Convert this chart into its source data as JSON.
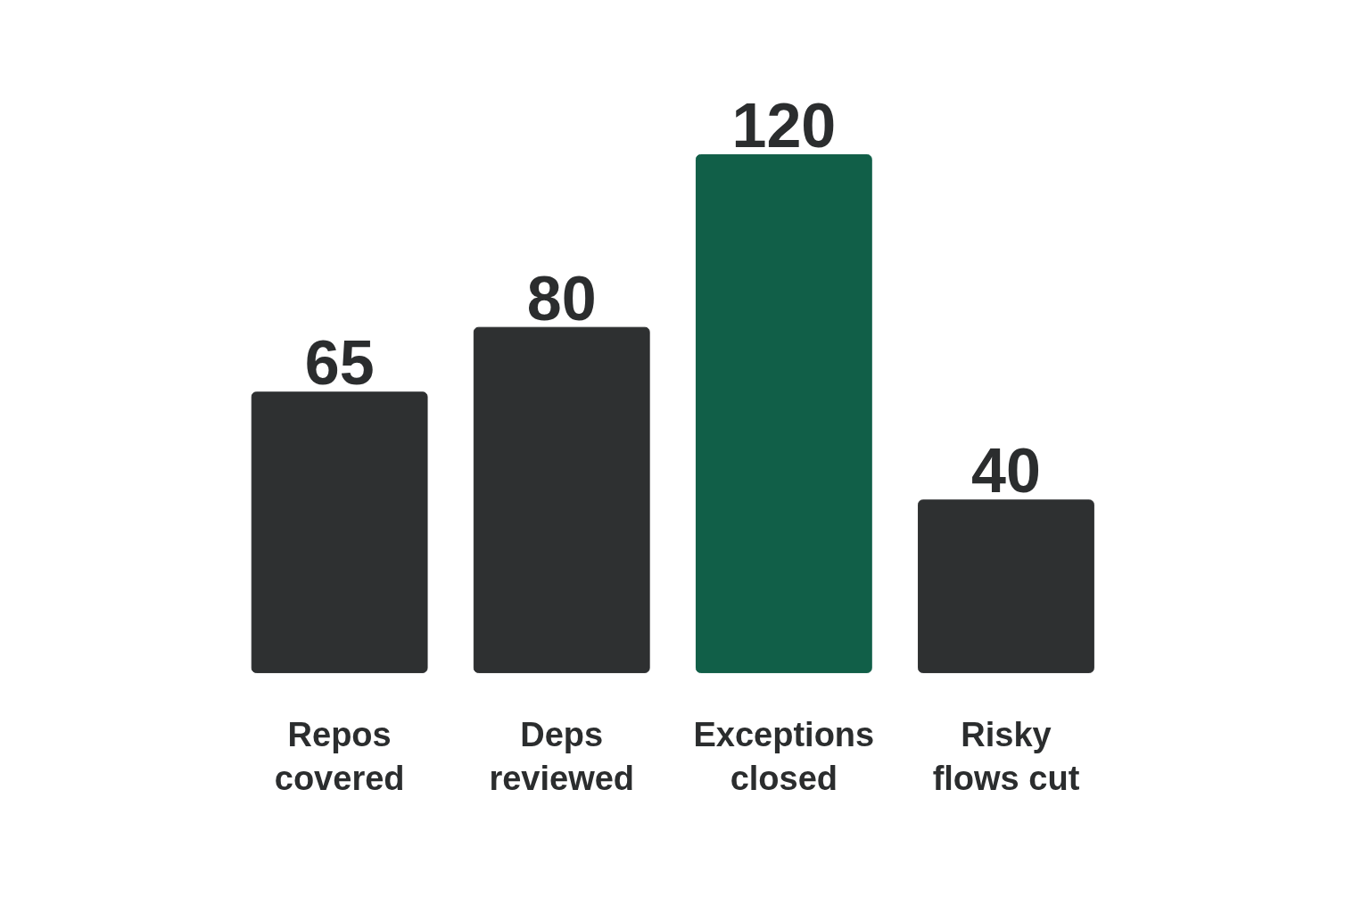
{
  "chart_data": {
    "type": "bar",
    "categories": [
      "Repos covered",
      "Deps reviewed",
      "Exceptions closed",
      "Risky flows cut"
    ],
    "values": [
      65,
      80,
      120,
      40
    ],
    "colors": [
      "#2e3031",
      "#2e3031",
      "#115f48",
      "#2e3031"
    ],
    "data_labels": true
  }
}
